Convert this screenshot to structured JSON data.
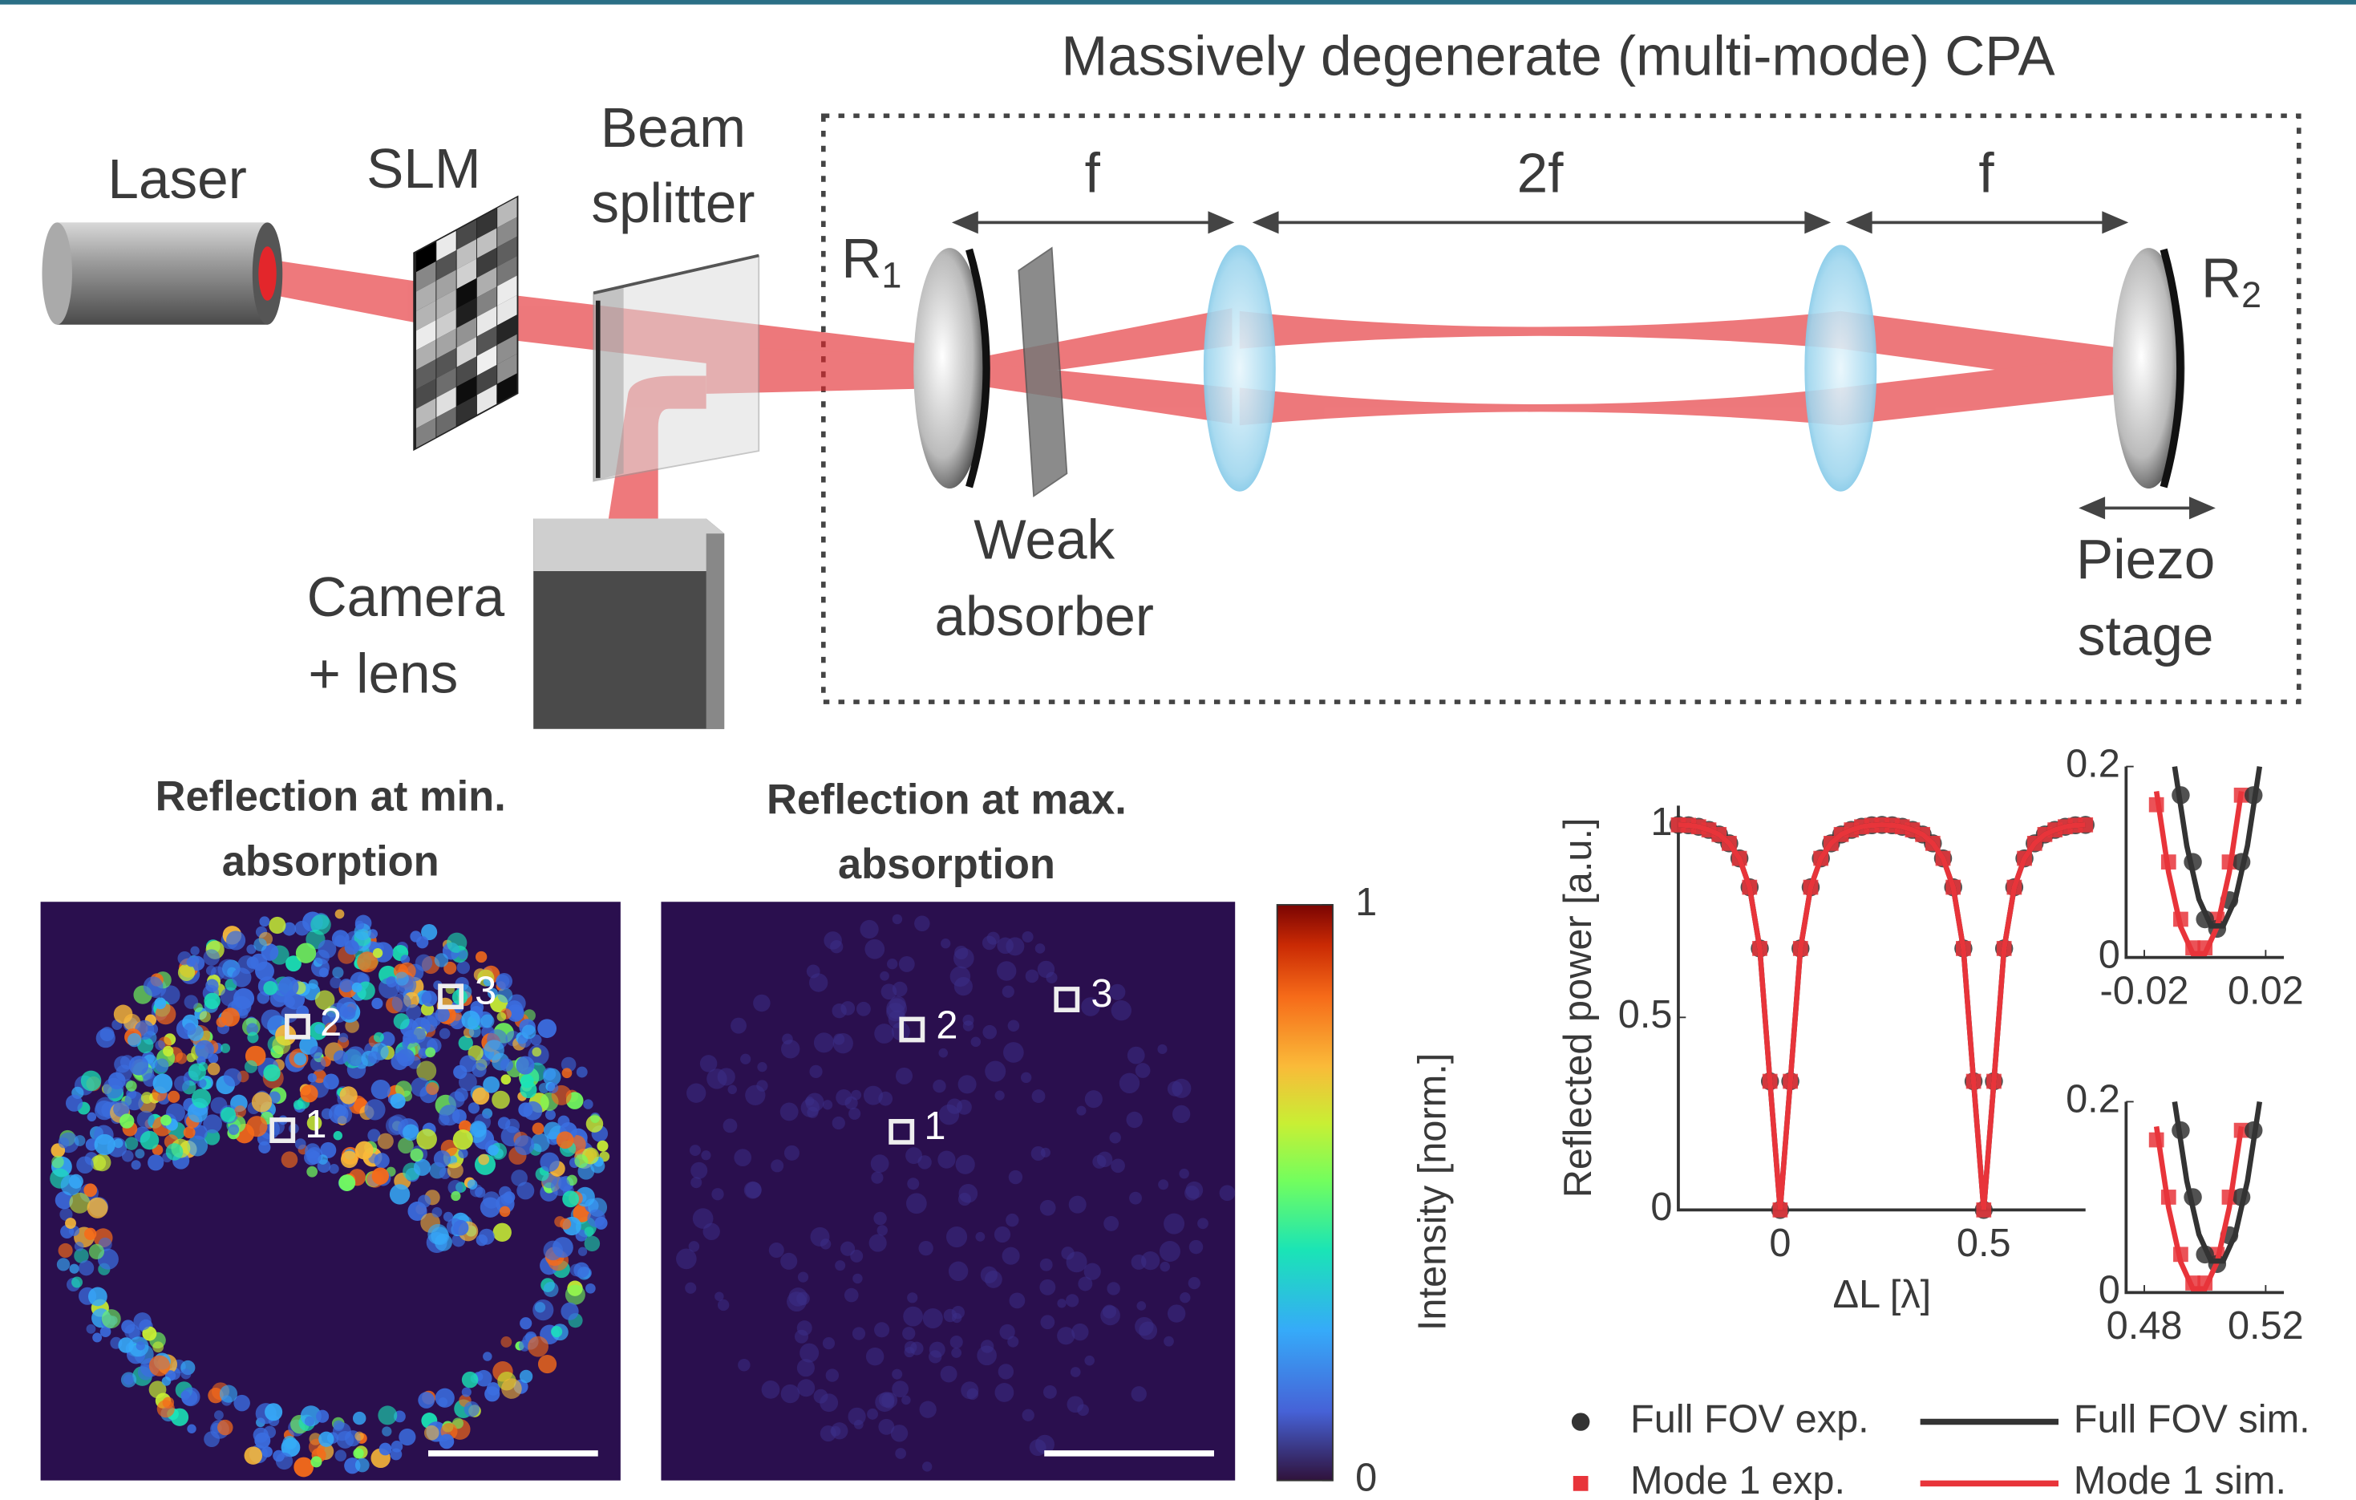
{
  "diagram": {
    "title": "Massively degenerate (multi-mode) CPA",
    "laser": "Laser",
    "slm": "SLM",
    "beam_splitter": [
      "Beam",
      "splitter"
    ],
    "mirror_1": {
      "label": "R",
      "subscript": "1"
    },
    "mirror_2": {
      "label": "R",
      "subscript": "2"
    },
    "distances": [
      "f",
      "2f",
      "f"
    ],
    "weak_absorber": [
      "Weak",
      "absorber"
    ],
    "piezo_stage": [
      "Piezo",
      "stage"
    ],
    "camera": [
      "Camera",
      "+ lens"
    ]
  },
  "images": [
    {
      "title": [
        "Reflection at min.",
        "absorption"
      ],
      "markers": [
        "1",
        "2",
        "3"
      ]
    },
    {
      "title": [
        "Reflection at max.",
        "absorption"
      ],
      "markers": [
        "1",
        "2",
        "3"
      ]
    }
  ],
  "colorbar": {
    "label": "Intensity [norm.]",
    "lim": [
      0,
      1
    ],
    "ticks": [
      0,
      1
    ]
  },
  "chart_data": [
    {
      "type": "line",
      "xlabel": "ΔL [λ]",
      "ylabel": "Reflected power [a.u.]",
      "xlim": [
        -0.25,
        0.75
      ],
      "ylim": [
        0,
        1.05
      ],
      "xticks": [
        0,
        0.5
      ],
      "yticks": [
        0,
        0.5,
        1
      ],
      "x": [
        -0.25,
        -0.225,
        -0.2,
        -0.175,
        -0.15,
        -0.125,
        -0.1,
        -0.075,
        -0.05,
        -0.025,
        0,
        0.025,
        0.05,
        0.075,
        0.1,
        0.125,
        0.15,
        0.175,
        0.2,
        0.225,
        0.25,
        0.275,
        0.3,
        0.325,
        0.35,
        0.375,
        0.4,
        0.425,
        0.45,
        0.475,
        0.5,
        0.525,
        0.55,
        0.575,
        0.6,
        0.625,
        0.65,
        0.675,
        0.7,
        0.725,
        0.75
      ],
      "series": [
        {
          "name": "Full FOV exp.",
          "style": "circle",
          "color": "#333333",
          "values": [
            1,
            0.999,
            0.995,
            0.987,
            0.975,
            0.952,
            0.913,
            0.838,
            0.679,
            0.334,
            0,
            0.334,
            0.679,
            0.838,
            0.913,
            0.952,
            0.975,
            0.987,
            0.995,
            0.999,
            1,
            0.999,
            0.995,
            0.987,
            0.975,
            0.952,
            0.913,
            0.838,
            0.679,
            0.334,
            0,
            0.334,
            0.679,
            0.838,
            0.913,
            0.952,
            0.975,
            0.987,
            0.995,
            0.999,
            1
          ]
        },
        {
          "name": "Mode 1 exp.",
          "style": "square",
          "color": "#e8343a",
          "values": [
            1,
            0.999,
            0.995,
            0.987,
            0.975,
            0.952,
            0.913,
            0.838,
            0.679,
            0.334,
            0,
            0.334,
            0.679,
            0.838,
            0.913,
            0.952,
            0.975,
            0.987,
            0.995,
            0.999,
            1,
            0.999,
            0.995,
            0.987,
            0.975,
            0.952,
            0.913,
            0.838,
            0.679,
            0.334,
            0,
            0.334,
            0.679,
            0.838,
            0.913,
            0.952,
            0.975,
            0.987,
            0.995,
            0.999,
            1
          ]
        },
        {
          "name": "Full FOV sim.",
          "style": "line",
          "color": "#333333",
          "values": [
            1,
            0.999,
            0.995,
            0.987,
            0.975,
            0.952,
            0.913,
            0.838,
            0.679,
            0.334,
            0,
            0.334,
            0.679,
            0.838,
            0.913,
            0.952,
            0.975,
            0.987,
            0.995,
            0.999,
            1,
            0.999,
            0.995,
            0.987,
            0.975,
            0.952,
            0.913,
            0.838,
            0.679,
            0.334,
            0,
            0.334,
            0.679,
            0.838,
            0.913,
            0.952,
            0.975,
            0.987,
            0.995,
            0.999,
            1
          ]
        },
        {
          "name": "Mode 1 sim.",
          "style": "line",
          "color": "#e8343a",
          "values": [
            1,
            0.999,
            0.995,
            0.987,
            0.975,
            0.952,
            0.913,
            0.838,
            0.679,
            0.334,
            0,
            0.334,
            0.679,
            0.838,
            0.913,
            0.952,
            0.975,
            0.987,
            0.995,
            0.999,
            1,
            0.999,
            0.995,
            0.987,
            0.975,
            0.952,
            0.913,
            0.838,
            0.679,
            0.334,
            0,
            0.334,
            0.679,
            0.838,
            0.913,
            0.952,
            0.975,
            0.987,
            0.995,
            0.999,
            1
          ]
        }
      ]
    },
    {
      "type": "line",
      "xlim": [
        -0.026,
        0.026
      ],
      "ylim": [
        0,
        0.2
      ],
      "xticks": [
        -0.02,
        0.02
      ],
      "yticks": [
        0,
        0.2
      ],
      "series": [
        {
          "style": "line",
          "color": "#e8343a",
          "x": [
            -0.016,
            -0.012,
            -0.008,
            -0.004,
            0,
            0.004,
            0.008,
            0.012
          ],
          "values": [
            0.174,
            0.089,
            0.032,
            0.004,
            0.004,
            0.032,
            0.089,
            0.174
          ]
        },
        {
          "style": "line",
          "color": "#333333",
          "x": [
            -0.01,
            -0.006,
            -0.002,
            0.002,
            0.006,
            0.01,
            0.014,
            0.018
          ],
          "values": [
            0.2,
            0.117,
            0.061,
            0.033,
            0.033,
            0.061,
            0.117,
            0.2
          ]
        },
        {
          "style": "square",
          "color": "#e8343a",
          "x": [
            -0.016,
            -0.012,
            -0.008,
            -0.004,
            0,
            0.004,
            0.008,
            0.012
          ],
          "values": [
            0.16,
            0.1,
            0.04,
            0.01,
            0.01,
            0.04,
            0.1,
            0.17
          ]
        },
        {
          "style": "circle",
          "color": "#333333",
          "x": [
            -0.008,
            -0.004,
            0,
            0.004,
            0.008,
            0.012,
            0.016
          ],
          "values": [
            0.17,
            0.1,
            0.04,
            0.03,
            0.06,
            0.1,
            0.17
          ]
        }
      ]
    },
    {
      "type": "line",
      "xlim": [
        0.474,
        0.526
      ],
      "ylim": [
        0,
        0.2
      ],
      "xticks": [
        0.48,
        0.52
      ],
      "yticks": [
        0,
        0.2
      ],
      "series": [
        {
          "style": "line",
          "color": "#e8343a",
          "x": [
            0.484,
            0.488,
            0.492,
            0.496,
            0.5,
            0.504,
            0.508,
            0.512
          ],
          "values": [
            0.174,
            0.089,
            0.032,
            0.004,
            0.004,
            0.032,
            0.089,
            0.174
          ]
        },
        {
          "style": "line",
          "color": "#333333",
          "x": [
            0.49,
            0.494,
            0.498,
            0.502,
            0.506,
            0.51,
            0.514,
            0.518
          ],
          "values": [
            0.2,
            0.117,
            0.061,
            0.033,
            0.033,
            0.061,
            0.117,
            0.2
          ]
        },
        {
          "style": "square",
          "color": "#e8343a",
          "x": [
            0.484,
            0.488,
            0.492,
            0.496,
            0.5,
            0.504,
            0.508,
            0.512
          ],
          "values": [
            0.16,
            0.1,
            0.04,
            0.01,
            0.01,
            0.04,
            0.1,
            0.17
          ]
        },
        {
          "style": "circle",
          "color": "#333333",
          "x": [
            0.492,
            0.496,
            0.5,
            0.504,
            0.508,
            0.512,
            0.516
          ],
          "values": [
            0.17,
            0.1,
            0.04,
            0.03,
            0.06,
            0.1,
            0.17
          ]
        }
      ]
    }
  ]
}
